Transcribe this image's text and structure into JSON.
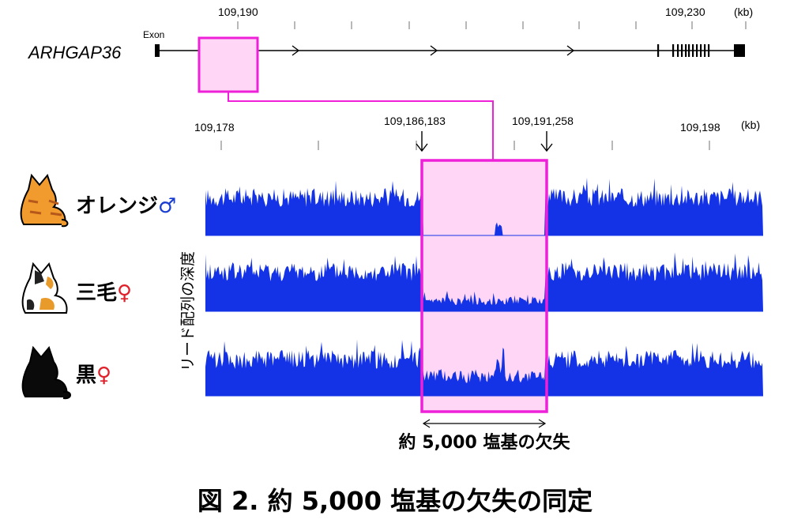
{
  "gene": {
    "name": "ARHGAP36",
    "exon_label": "Exon",
    "ticks": [
      "109,190",
      "109,230"
    ],
    "unit": "(kb)"
  },
  "zoom": {
    "ticks": [
      "109,178",
      "109,198"
    ],
    "unit": "(kb)",
    "deletion_start": "109,186,183",
    "deletion_end": "109,191,258"
  },
  "y_axis_label": "リード配列の深度",
  "tracks": [
    {
      "name": "オレンジ",
      "sex_symbol": "♂",
      "sex_color": "#1a3fd0",
      "cat_color": "orange"
    },
    {
      "name": "三毛",
      "sex_symbol": "♀",
      "sex_color": "#e0202a",
      "cat_color": "calico"
    },
    {
      "name": "黒",
      "sex_symbol": "♀",
      "sex_color": "#e0202a",
      "cat_color": "black"
    }
  ],
  "deletion_caption": "約 5,000 塩基の欠失",
  "figure_title": "図 2.  約 5,000 塩基の欠失の同定",
  "colors": {
    "highlight": "#ee20d8",
    "highlight_fill": "#ffd6f6",
    "coverage": "#1433e6"
  }
}
